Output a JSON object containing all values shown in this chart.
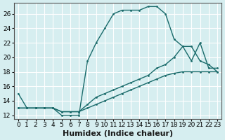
{
  "bg_color": "#d6eef0",
  "grid_color": "#ffffff",
  "line_color": "#1a6b6b",
  "xlabel": "Humidex (Indice chaleur)",
  "xlabel_fontsize": 8,
  "tick_fontsize": 6.5,
  "xlim": [
    -0.5,
    23.5
  ],
  "ylim": [
    11.5,
    27.5
  ],
  "xticks": [
    0,
    1,
    2,
    3,
    4,
    5,
    6,
    7,
    8,
    9,
    10,
    11,
    12,
    13,
    14,
    15,
    16,
    17,
    18,
    19,
    20,
    21,
    22,
    23
  ],
  "yticks": [
    12,
    14,
    16,
    18,
    20,
    22,
    24,
    26
  ],
  "line1_x": [
    0,
    1,
    2,
    3,
    4,
    5,
    6,
    7,
    8,
    9,
    10,
    11,
    12,
    13,
    14,
    15,
    16,
    17,
    18,
    19,
    20,
    21,
    22,
    23
  ],
  "line1_y": [
    15,
    13,
    13,
    13,
    13,
    12,
    12,
    12,
    19.5,
    22,
    24,
    26,
    26.5,
    26.5,
    26.5,
    27,
    27,
    26,
    22.5,
    21.5,
    19.5,
    22,
    18.5,
    18.5
  ],
  "line2_x": [
    0,
    1,
    2,
    3,
    4,
    5,
    6,
    7,
    8,
    9,
    10,
    11,
    12,
    13,
    14,
    15,
    16,
    17,
    18,
    19,
    20,
    21,
    22,
    23
  ],
  "line2_y": [
    13,
    13,
    13,
    13,
    13,
    12.5,
    12.5,
    12.5,
    13.5,
    14.5,
    15,
    15.5,
    16,
    16.5,
    17,
    17.5,
    18.5,
    19,
    20,
    21.5,
    21.5,
    19.5,
    19,
    18
  ],
  "line3_x": [
    0,
    1,
    2,
    3,
    4,
    5,
    6,
    7,
    8,
    9,
    10,
    11,
    12,
    13,
    14,
    15,
    16,
    17,
    18,
    19,
    20,
    21,
    22,
    23
  ],
  "line3_y": [
    13,
    13,
    13,
    13,
    13,
    12.5,
    12.5,
    12.5,
    13,
    13.5,
    14,
    14.5,
    15,
    15.5,
    16,
    16.5,
    17,
    17.5,
    17.8,
    18,
    18,
    18,
    18,
    18
  ]
}
